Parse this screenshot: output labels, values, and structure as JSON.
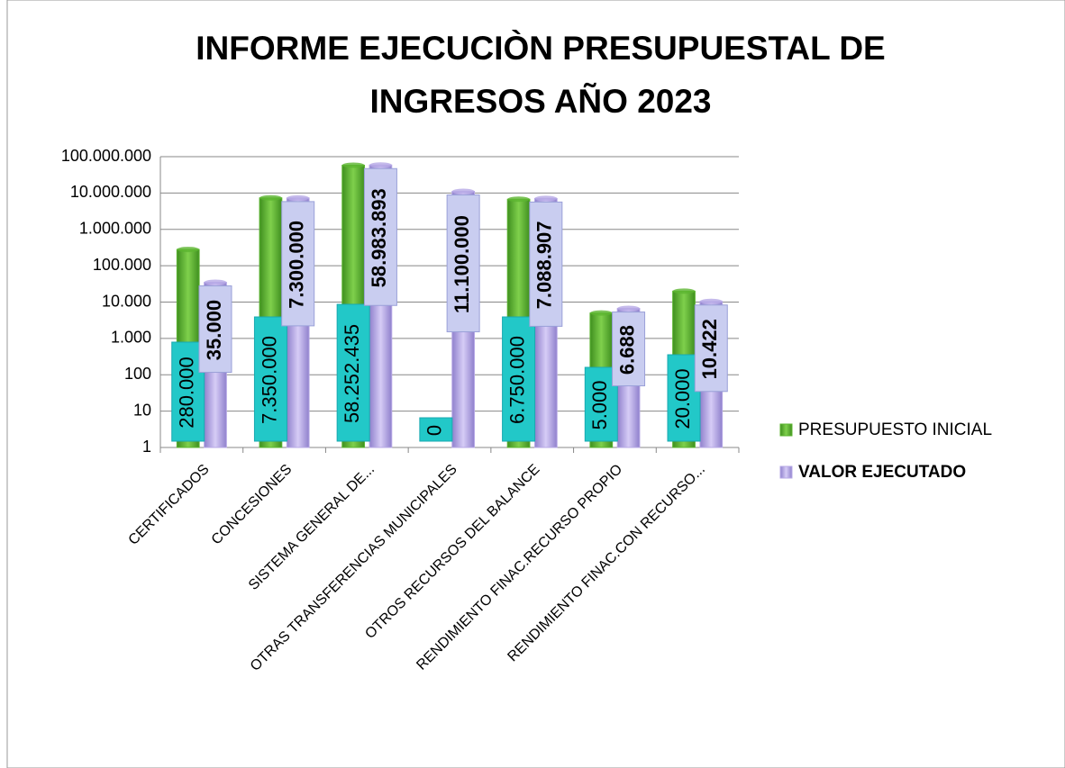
{
  "chart_data": {
    "type": "bar",
    "title": [
      "INFORME EJECUCIÒN PRESUPUESTAL DE",
      "INGRESOS AÑO 2023"
    ],
    "categories": [
      "CERTIFICADOS",
      "CONCESIONES",
      "SISTEMA GENERAL DE...",
      "OTRAS TRANSFERENCIAS MUNICIPALES",
      "OTROS RECURSOS DEL BALANCE",
      "RENDIMIENTO FINAC.RECURSO PROPIO",
      "RENDIMIENTO FINAC.CON RECURSO..."
    ],
    "series": [
      {
        "name": "PRESUPUESTO INICIAL",
        "color": "#5cb531",
        "label_color": "#22c8c8",
        "values": [
          280000,
          7350000,
          58252435,
          0,
          6750000,
          5000,
          20000
        ],
        "value_labels": [
          "280.000",
          "7.350.000",
          "58.252.435",
          "0",
          "6.750.000",
          "5.000",
          "20.000"
        ]
      },
      {
        "name": "VALOR EJECUTADO",
        "color": "#b7a9e6",
        "label_color": "#c9cdf0",
        "values": [
          35000,
          7300000,
          58983893,
          11100000,
          7088907,
          6688,
          10422
        ],
        "value_labels": [
          "35.000",
          "7.300.000",
          "58.983.893",
          "11.100.000",
          "7.088.907",
          "6.688",
          "10.422"
        ]
      }
    ],
    "log_scale": true,
    "ylim": [
      1,
      100000000
    ],
    "yticks": [
      1,
      10,
      100,
      {
        "value": 1000,
        "label": "1.000"
      },
      {
        "value": 10000,
        "label": "10.000"
      },
      {
        "value": 100000,
        "label": "100.000"
      },
      {
        "value": 1000000,
        "label": "1.000.000"
      },
      {
        "value": 10000000,
        "label": "10.000.000"
      },
      {
        "value": 100000000,
        "label": "100.000.000"
      }
    ],
    "grid": true,
    "legend": "right"
  }
}
